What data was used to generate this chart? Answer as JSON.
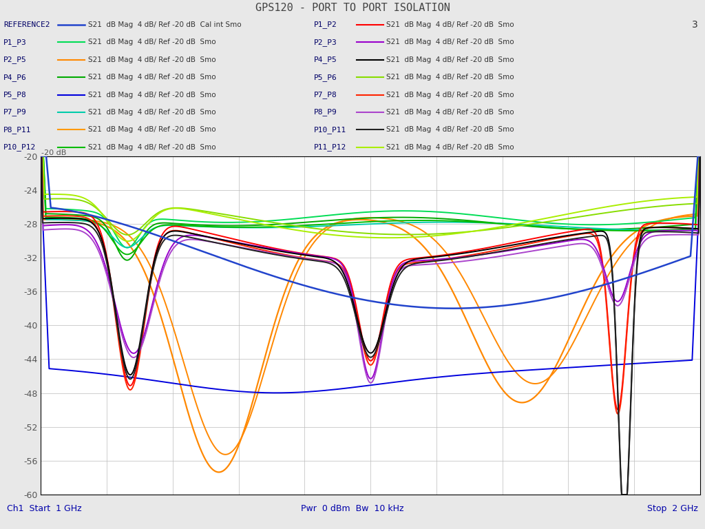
{
  "title": "GPS120 - PORT TO PORT ISOLATION",
  "xlabel_left": "Ch1  Start  1 GHz",
  "xlabel_center": "Pwr  0 dBm  Bw  10 kHz",
  "xlabel_right": "Stop  2 GHz",
  "ymin": -60,
  "ymax": -20,
  "xmin": 1.0,
  "xmax": 2.0,
  "background_color": "#e8e8e8",
  "plot_bg_color": "#ffffff",
  "grid_color": "#bbbbbb",
  "ref_label_color": "#555555",
  "ytick_color": "#555555",
  "title_color": "#444444",
  "bottom_text_color": "#0000aa",
  "legend_left": [
    {
      "label": "REFERENCE2",
      "color": "#2244cc",
      "lw": 1.8,
      "desc": "S21  dB Mag  4 dB/ Ref -20 dB  Cal int Smo"
    },
    {
      "label": "P1_P3",
      "color": "#00dd55",
      "lw": 1.5,
      "desc": "S21  dB Mag  4 dB/ Ref -20 dB  Smo"
    },
    {
      "label": "P2_P5",
      "color": "#ff8800",
      "lw": 1.5,
      "desc": "S21  dB Mag  4 dB/ Ref -20 dB  Smo"
    },
    {
      "label": "P4_P6",
      "color": "#00aa00",
      "lw": 1.5,
      "desc": "S21  dB Mag  4 dB/ Ref -20 dB  Smo"
    },
    {
      "label": "P5_P8",
      "color": "#0000dd",
      "lw": 1.5,
      "desc": "S21  dB Mag  4 dB/ Ref -20 dB  Smo"
    },
    {
      "label": "P7_P9",
      "color": "#00ccaa",
      "lw": 1.5,
      "desc": "S21  dB Mag  4 dB/ Ref -20 dB  Smo"
    },
    {
      "label": "P8_P11",
      "color": "#ff9900",
      "lw": 1.5,
      "desc": "S21  dB Mag  4 dB/ Ref -20 dB  Smo"
    },
    {
      "label": "P10_P12",
      "color": "#00bb00",
      "lw": 1.5,
      "desc": "S21  dB Mag  4 dB/ Ref -20 dB  Smo"
    }
  ],
  "legend_right": [
    {
      "label": "P1_P2",
      "color": "#ff0000",
      "lw": 1.5,
      "desc": "S21  dB Mag  4 dB/ Ref -20 dB  Smo"
    },
    {
      "label": "P2_P3",
      "color": "#9900cc",
      "lw": 1.5,
      "desc": "S21  dB Mag  4 dB/ Ref -20 dB  Smo"
    },
    {
      "label": "P4_P5",
      "color": "#000000",
      "lw": 1.5,
      "desc": "S21  dB Mag  4 dB/ Ref -20 dB  Smo"
    },
    {
      "label": "P5_P6",
      "color": "#88dd00",
      "lw": 1.5,
      "desc": "S21  dB Mag  4 dB/ Ref -20 dB  Smo"
    },
    {
      "label": "P7_P8",
      "color": "#ff2200",
      "lw": 1.5,
      "desc": "S21  dB Mag  4 dB/ Ref -20 dB  Smo"
    },
    {
      "label": "P8_P9",
      "color": "#aa44cc",
      "lw": 1.5,
      "desc": "S21  dB Mag  4 dB/ Ref -20 dB  Smo"
    },
    {
      "label": "P10_P11",
      "color": "#222222",
      "lw": 1.5,
      "desc": "S21  dB Mag  4 dB/ Ref -20 dB  Smo"
    },
    {
      "label": "P11_P12",
      "color": "#aaee00",
      "lw": 1.5,
      "desc": "S21  dB Mag  4 dB/ Ref -20 dB  Smo"
    }
  ]
}
